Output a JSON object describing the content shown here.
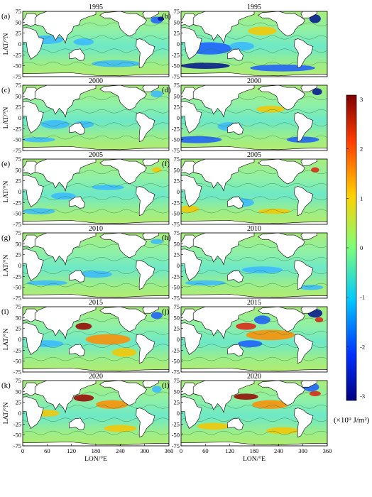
{
  "figure": {
    "panel_labels": [
      "(a)",
      "(b)",
      "(c)",
      "(d)",
      "(e)",
      "(f)",
      "(g)",
      "(h)",
      "(i)",
      "(j)",
      "(k)",
      "(l)"
    ],
    "years": [
      "1995",
      "2000",
      "2005",
      "2010",
      "2015",
      "2020"
    ],
    "ylabel": "LAT/°N",
    "xlabel": "LON/°E",
    "lat_ticks": [
      "75",
      "50",
      "25",
      "0",
      "-25",
      "-50",
      "-75"
    ],
    "lon_ticks": [
      "0",
      "60",
      "120",
      "180",
      "240",
      "300",
      "360"
    ],
    "colorbar": {
      "ticks": [
        "3",
        "2",
        "1",
        "0",
        "-1",
        "-2",
        "-3"
      ],
      "unit": "(×10⁹ J/m²)",
      "range": [
        -3,
        3
      ],
      "colors": [
        "#00007f",
        "#0050ff",
        "#00c8ff",
        "#7dff7a",
        "#ffd200",
        "#ff3c00",
        "#7f0000"
      ]
    }
  }
}
